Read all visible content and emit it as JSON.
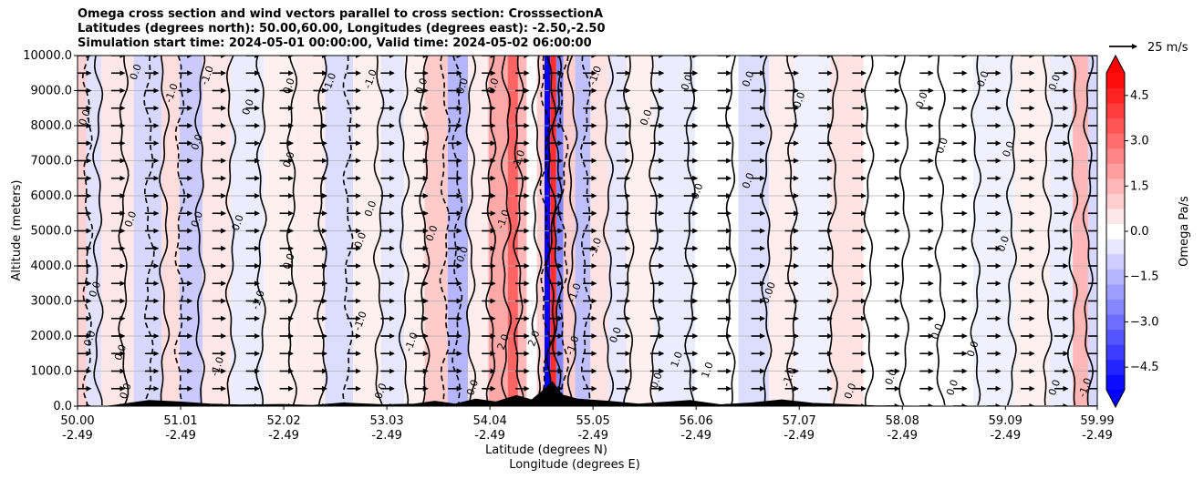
{
  "figure": {
    "title_lines": [
      "Omega cross section and wind vectors parallel to cross section: CrosssectionA",
      "Latitudes (degrees north): 50.00,60.00, Longitudes (degrees east): -2.50,-2.50",
      "Simulation start time: 2024-05-01 00:00:00, Valid time: 2024-05-02 06:00:00"
    ]
  },
  "chart_data": {
    "type": "heatmap",
    "subtype": "cross-section filled contour with contour lines and wind vectors",
    "title": "Omega cross section and wind vectors parallel to cross section: CrosssectionA",
    "ylabel": "Altitude (meters)",
    "xlabel": "Latitude (degrees N)",
    "xlabel2": "Longitude (degrees E)",
    "x_range": [
      50.0,
      59.99
    ],
    "ylim": [
      0,
      10000
    ],
    "y_ticks": [
      0,
      1000,
      2000,
      3000,
      4000,
      5000,
      6000,
      7000,
      8000,
      9000,
      10000
    ],
    "y_tick_labels": [
      "0.0",
      "1000.0",
      "2000.0",
      "3000.0",
      "4000.0",
      "5000.0",
      "6000.0",
      "7000.0",
      "8000.0",
      "9000.0",
      "10000.0"
    ],
    "x_ticks": [
      {
        "lat": "50.00",
        "lon": "-2.49"
      },
      {
        "lat": "51.01",
        "lon": "-2.49"
      },
      {
        "lat": "52.02",
        "lon": "-2.49"
      },
      {
        "lat": "53.03",
        "lon": "-2.49"
      },
      {
        "lat": "54.04",
        "lon": "-2.49"
      },
      {
        "lat": "55.05",
        "lon": "-2.49"
      },
      {
        "lat": "56.06",
        "lon": "-2.49"
      },
      {
        "lat": "57.07",
        "lon": "-2.49"
      },
      {
        "lat": "58.08",
        "lon": "-2.49"
      },
      {
        "lat": "59.09",
        "lon": "-2.49"
      },
      {
        "lat": "59.99",
        "lon": "-2.49"
      }
    ],
    "grid": "horizontal",
    "colorbar": {
      "label": "Omega Pa/s",
      "range": [
        -5.25,
        5.25
      ],
      "ticks": [
        4.5,
        3.0,
        1.5,
        0.0,
        -1.5,
        -3.0,
        -4.5
      ],
      "tick_labels": [
        "4.5",
        "3.0",
        "1.5",
        "0.0",
        "−1.5",
        "−3.0",
        "−4.5"
      ],
      "extend": "both",
      "cmap": "bwr"
    },
    "quiver_key": {
      "label": "25 m/s",
      "speed": 25
    },
    "omega_bands": [
      {
        "lat": 50.05,
        "omega": 0.9
      },
      {
        "lat": 50.12,
        "omega": -0.6
      },
      {
        "lat": 50.35,
        "omega": 0.5
      },
      {
        "lat": 50.75,
        "omega": -0.8
      },
      {
        "lat": 50.9,
        "omega": 0.7
      },
      {
        "lat": 51.1,
        "omega": -1.1
      },
      {
        "lat": 51.35,
        "omega": 0.5
      },
      {
        "lat": 51.65,
        "omega": -0.4
      },
      {
        "lat": 52.0,
        "omega": 0.3
      },
      {
        "lat": 52.3,
        "omega": 0.4
      },
      {
        "lat": 52.55,
        "omega": -0.7
      },
      {
        "lat": 52.85,
        "omega": 0.3
      },
      {
        "lat": 53.1,
        "omega": -0.5
      },
      {
        "lat": 53.3,
        "omega": 0.3
      },
      {
        "lat": 53.5,
        "omega": 1.1
      },
      {
        "lat": 53.75,
        "omega": -1.5
      },
      {
        "lat": 53.9,
        "omega": 0.4
      },
      {
        "lat": 54.15,
        "omega": 1.8
      },
      {
        "lat": 54.28,
        "omega": 3.2
      },
      {
        "lat": 54.35,
        "omega": 1.5
      },
      {
        "lat": 54.45,
        "omega": 0.2
      },
      {
        "lat": 54.55,
        "omega": 1.0
      },
      {
        "lat": 54.6,
        "omega": -5.2
      },
      {
        "lat": 54.66,
        "omega": 4.3
      },
      {
        "lat": 54.72,
        "omega": -2.5
      },
      {
        "lat": 54.8,
        "omega": 1.0
      },
      {
        "lat": 54.95,
        "omega": -1.3
      },
      {
        "lat": 55.1,
        "omega": 0.6
      },
      {
        "lat": 55.3,
        "omega": -0.5
      },
      {
        "lat": 55.45,
        "omega": 0.3
      },
      {
        "lat": 55.85,
        "omega": -0.4
      },
      {
        "lat": 56.25,
        "omega": 0.2
      },
      {
        "lat": 56.7,
        "omega": -0.7
      },
      {
        "lat": 56.85,
        "omega": 0.4
      },
      {
        "lat": 57.2,
        "omega": -0.3
      },
      {
        "lat": 57.55,
        "omega": 0.6
      },
      {
        "lat": 57.85,
        "omega": 0.2
      },
      {
        "lat": 58.2,
        "omega": -0.2
      },
      {
        "lat": 58.6,
        "omega": 0.2
      },
      {
        "lat": 58.95,
        "omega": -0.3
      },
      {
        "lat": 59.4,
        "omega": 0.3
      },
      {
        "lat": 59.65,
        "omega": -0.4
      },
      {
        "lat": 59.85,
        "omega": 1.5
      },
      {
        "lat": 59.95,
        "omega": -0.8
      }
    ],
    "contour_lines": [
      {
        "lat": 50.1,
        "dashed": true
      },
      {
        "lat": 50.2,
        "dashed": false
      },
      {
        "lat": 50.45,
        "dashed": false
      },
      {
        "lat": 50.7,
        "dashed": true
      },
      {
        "lat": 50.85,
        "dashed": false
      },
      {
        "lat": 51.0,
        "dashed": true
      },
      {
        "lat": 51.2,
        "dashed": false
      },
      {
        "lat": 51.5,
        "dashed": false
      },
      {
        "lat": 51.8,
        "dashed": false
      },
      {
        "lat": 52.1,
        "dashed": false
      },
      {
        "lat": 52.4,
        "dashed": false
      },
      {
        "lat": 52.65,
        "dashed": true
      },
      {
        "lat": 52.95,
        "dashed": false
      },
      {
        "lat": 53.2,
        "dashed": false
      },
      {
        "lat": 53.4,
        "dashed": false
      },
      {
        "lat": 53.6,
        "dashed": true
      },
      {
        "lat": 53.72,
        "dashed": true
      },
      {
        "lat": 53.85,
        "dashed": false
      },
      {
        "lat": 54.05,
        "dashed": false
      },
      {
        "lat": 54.2,
        "dashed": false
      },
      {
        "lat": 54.32,
        "dashed": false
      },
      {
        "lat": 54.5,
        "dashed": false
      },
      {
        "lat": 54.58,
        "dashed": true
      },
      {
        "lat": 54.64,
        "dashed": false
      },
      {
        "lat": 54.7,
        "dashed": false
      },
      {
        "lat": 54.76,
        "dashed": true
      },
      {
        "lat": 54.85,
        "dashed": false
      },
      {
        "lat": 54.98,
        "dashed": true
      },
      {
        "lat": 55.2,
        "dashed": false
      },
      {
        "lat": 55.4,
        "dashed": false
      },
      {
        "lat": 55.65,
        "dashed": false
      },
      {
        "lat": 56.0,
        "dashed": false
      },
      {
        "lat": 56.4,
        "dashed": false
      },
      {
        "lat": 56.75,
        "dashed": false
      },
      {
        "lat": 57.0,
        "dashed": false
      },
      {
        "lat": 57.4,
        "dashed": false
      },
      {
        "lat": 57.75,
        "dashed": false
      },
      {
        "lat": 58.1,
        "dashed": false
      },
      {
        "lat": 58.45,
        "dashed": false
      },
      {
        "lat": 58.8,
        "dashed": false
      },
      {
        "lat": 59.15,
        "dashed": false
      },
      {
        "lat": 59.5,
        "dashed": false
      },
      {
        "lat": 59.75,
        "dashed": false
      },
      {
        "lat": 59.9,
        "dashed": false
      }
    ],
    "contour_labels": [
      {
        "lat": 50.1,
        "alt": 8200,
        "text": "0.0"
      },
      {
        "lat": 50.6,
        "alt": 9500,
        "text": "0.0"
      },
      {
        "lat": 50.95,
        "alt": 8900,
        "text": "-1.0"
      },
      {
        "lat": 51.3,
        "alt": 9400,
        "text": "-1.0"
      },
      {
        "lat": 51.7,
        "alt": 8500,
        "text": "0.0"
      },
      {
        "lat": 52.1,
        "alt": 9100,
        "text": "0.0"
      },
      {
        "lat": 52.5,
        "alt": 9200,
        "text": "-1.0"
      },
      {
        "lat": 52.9,
        "alt": 9300,
        "text": "-1.0"
      },
      {
        "lat": 53.4,
        "alt": 9100,
        "text": "0.0"
      },
      {
        "lat": 53.8,
        "alt": 9100,
        "text": "0.0"
      },
      {
        "lat": 54.1,
        "alt": 9100,
        "text": "0.0"
      },
      {
        "lat": 55.1,
        "alt": 9400,
        "text": "-1.0"
      },
      {
        "lat": 56.0,
        "alt": 9200,
        "text": "0.0"
      },
      {
        "lat": 56.6,
        "alt": 9300,
        "text": "0.0"
      },
      {
        "lat": 57.1,
        "alt": 8700,
        "text": "0.0"
      },
      {
        "lat": 58.3,
        "alt": 8700,
        "text": "0.0"
      },
      {
        "lat": 58.9,
        "alt": 9300,
        "text": "0.0"
      },
      {
        "lat": 59.6,
        "alt": 9200,
        "text": "0.0"
      },
      {
        "lat": 51.2,
        "alt": 7500,
        "text": "0.0"
      },
      {
        "lat": 52.1,
        "alt": 7000,
        "text": "0.0"
      },
      {
        "lat": 55.6,
        "alt": 8200,
        "text": "0.0"
      },
      {
        "lat": 58.5,
        "alt": 7400,
        "text": "0.0"
      },
      {
        "lat": 59.15,
        "alt": 7300,
        "text": "0.0"
      },
      {
        "lat": 56.1,
        "alt": 6100,
        "text": "0.0"
      },
      {
        "lat": 56.6,
        "alt": 6400,
        "text": "0.0"
      },
      {
        "lat": 51.2,
        "alt": 5300,
        "text": "0.0"
      },
      {
        "lat": 51.6,
        "alt": 5200,
        "text": "0.0"
      },
      {
        "lat": 50.55,
        "alt": 5300,
        "text": "0.0"
      },
      {
        "lat": 52.9,
        "alt": 5600,
        "text": "0.0"
      },
      {
        "lat": 53.5,
        "alt": 4900,
        "text": "0.0"
      },
      {
        "lat": 52.1,
        "alt": 4100,
        "text": "0.0"
      },
      {
        "lat": 52.8,
        "alt": 4700,
        "text": "0.0"
      },
      {
        "lat": 53.8,
        "alt": 4300,
        "text": "0.0"
      },
      {
        "lat": 55.1,
        "alt": 4500,
        "text": "-1.0"
      },
      {
        "lat": 59.1,
        "alt": 4600,
        "text": "0.0"
      },
      {
        "lat": 50.2,
        "alt": 3300,
        "text": "0.0"
      },
      {
        "lat": 51.8,
        "alt": 3000,
        "text": "-1.0"
      },
      {
        "lat": 52.8,
        "alt": 2400,
        "text": "-1.0"
      },
      {
        "lat": 53.3,
        "alt": 1800,
        "text": "-1.0"
      },
      {
        "lat": 56.8,
        "alt": 3200,
        "text": "0.00"
      },
      {
        "lat": 58.45,
        "alt": 2100,
        "text": "0.0"
      },
      {
        "lat": 50.15,
        "alt": 1900,
        "text": "0.0"
      },
      {
        "lat": 50.45,
        "alt": 1500,
        "text": "0.0"
      },
      {
        "lat": 51.4,
        "alt": 1100,
        "text": "-1.0"
      },
      {
        "lat": 54.2,
        "alt": 1800,
        "text": "2.0"
      },
      {
        "lat": 54.5,
        "alt": 1900,
        "text": "2.0"
      },
      {
        "lat": 54.88,
        "alt": 1700,
        "text": "-1.0"
      },
      {
        "lat": 55.3,
        "alt": 2000,
        "text": "0.0"
      },
      {
        "lat": 55.9,
        "alt": 1300,
        "text": "1.0"
      },
      {
        "lat": 56.2,
        "alt": 1000,
        "text": "1.0"
      },
      {
        "lat": 57.0,
        "alt": 800,
        "text": "-1.0"
      },
      {
        "lat": 58.8,
        "alt": 1600,
        "text": "0.0"
      },
      {
        "lat": 59.9,
        "alt": 500,
        "text": "-1.0"
      },
      {
        "lat": 50.5,
        "alt": 400,
        "text": "0.0"
      },
      {
        "lat": 53.0,
        "alt": 400,
        "text": "0.0"
      },
      {
        "lat": 53.9,
        "alt": 500,
        "text": "0.0"
      },
      {
        "lat": 55.7,
        "alt": 700,
        "text": "0.0"
      },
      {
        "lat": 57.6,
        "alt": 400,
        "text": "0.0"
      },
      {
        "lat": 58.0,
        "alt": 800,
        "text": "0.0"
      },
      {
        "lat": 58.6,
        "alt": 500,
        "text": "0.0"
      },
      {
        "lat": 59.6,
        "alt": 500,
        "text": "0.0"
      },
      {
        "lat": 54.9,
        "alt": 3200,
        "text": "-1.0"
      },
      {
        "lat": 54.35,
        "alt": 7000,
        "text": "-1.0"
      },
      {
        "lat": 54.2,
        "alt": 5300,
        "text": "-1.0"
      }
    ],
    "wind_vectors": {
      "lat_start": 50.0,
      "lat_step": 0.33,
      "altitudes": [
        0,
        500,
        1000,
        1500,
        2000,
        2500,
        3000,
        3500,
        4000,
        4500,
        5000,
        5500,
        6000,
        6500,
        7000,
        7500,
        8000,
        8500,
        9000,
        9500,
        10000
      ],
      "speed_m_s": 12
    },
    "terrain": [
      {
        "lat": 50.0,
        "alt": 0
      },
      {
        "lat": 50.3,
        "alt": 0
      },
      {
        "lat": 50.5,
        "alt": 80
      },
      {
        "lat": 50.7,
        "alt": 160
      },
      {
        "lat": 51.0,
        "alt": 120
      },
      {
        "lat": 51.3,
        "alt": 60
      },
      {
        "lat": 51.6,
        "alt": 30
      },
      {
        "lat": 52.0,
        "alt": 50
      },
      {
        "lat": 52.3,
        "alt": 20
      },
      {
        "lat": 52.6,
        "alt": 90
      },
      {
        "lat": 53.0,
        "alt": 40
      },
      {
        "lat": 53.3,
        "alt": 60
      },
      {
        "lat": 53.5,
        "alt": 140
      },
      {
        "lat": 53.7,
        "alt": 60
      },
      {
        "lat": 53.9,
        "alt": 200
      },
      {
        "lat": 54.1,
        "alt": 120
      },
      {
        "lat": 54.3,
        "alt": 300
      },
      {
        "lat": 54.45,
        "alt": 180
      },
      {
        "lat": 54.55,
        "alt": 420
      },
      {
        "lat": 54.65,
        "alt": 700
      },
      {
        "lat": 54.75,
        "alt": 320
      },
      {
        "lat": 54.9,
        "alt": 200
      },
      {
        "lat": 55.2,
        "alt": 140
      },
      {
        "lat": 55.5,
        "alt": 60
      },
      {
        "lat": 55.8,
        "alt": 120
      },
      {
        "lat": 56.0,
        "alt": 160
      },
      {
        "lat": 56.3,
        "alt": 40
      },
      {
        "lat": 56.6,
        "alt": 90
      },
      {
        "lat": 56.9,
        "alt": 180
      },
      {
        "lat": 57.2,
        "alt": 80
      },
      {
        "lat": 57.5,
        "alt": 50
      },
      {
        "lat": 57.8,
        "alt": 10
      },
      {
        "lat": 58.2,
        "alt": 0
      },
      {
        "lat": 59.99,
        "alt": 0
      }
    ]
  }
}
